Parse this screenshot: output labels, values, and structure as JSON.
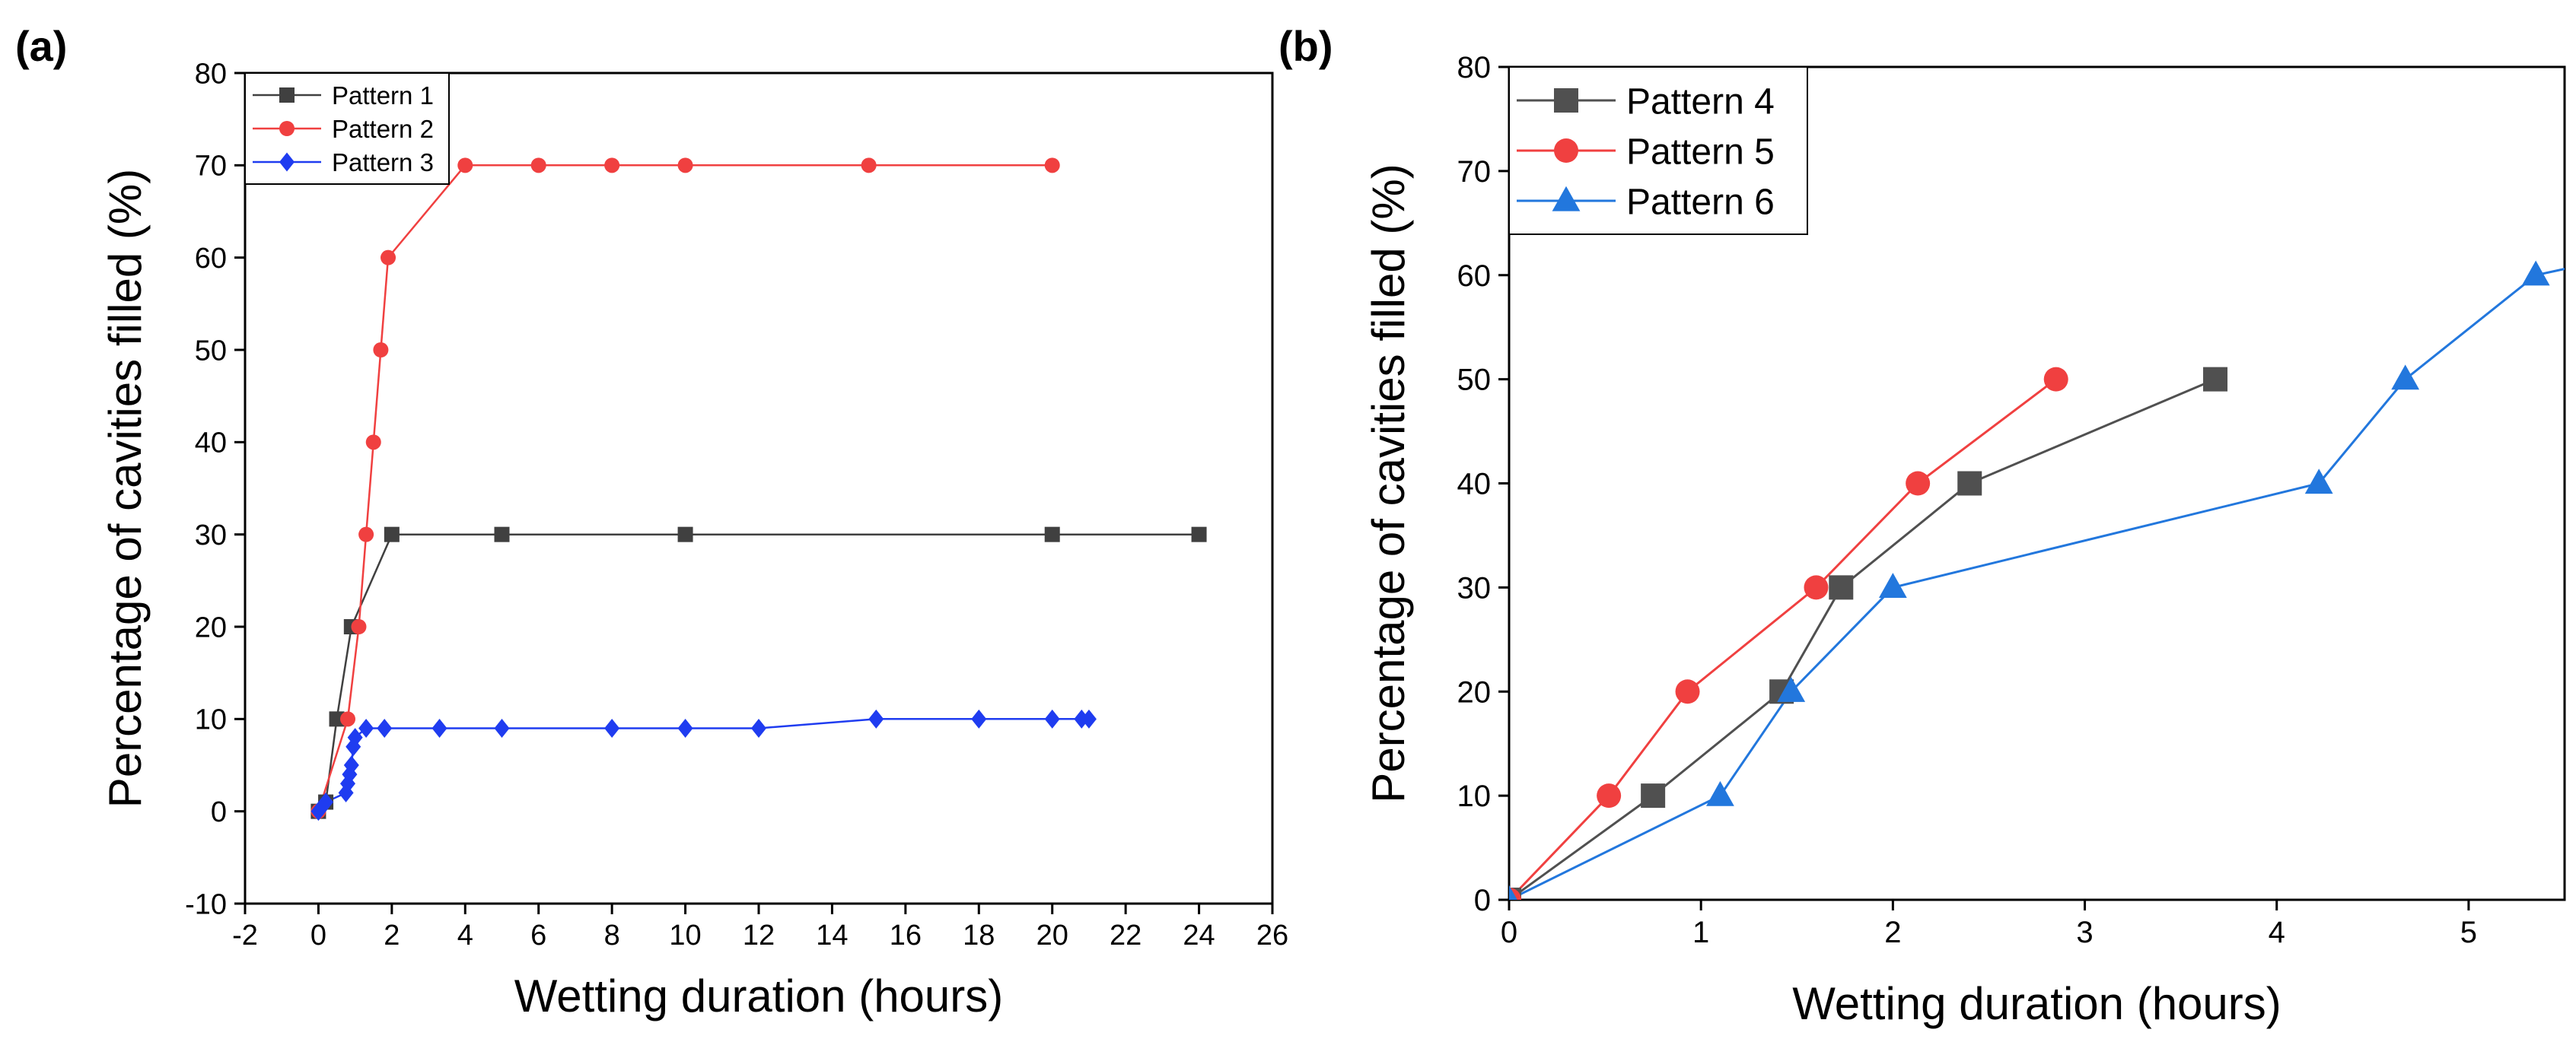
{
  "chart_data": [
    {
      "panel": "(a)",
      "type": "line",
      "xlabel": "Wetting duration (hours)",
      "ylabel": "Percentage of cavities filled (%)",
      "xlim": [
        -2,
        26
      ],
      "ylim": [
        -10,
        80
      ],
      "xticks": [
        -2,
        0,
        2,
        4,
        6,
        8,
        10,
        12,
        14,
        16,
        18,
        20,
        22,
        24,
        26
      ],
      "yticks": [
        -10,
        0,
        10,
        20,
        30,
        40,
        50,
        60,
        70,
        80
      ],
      "legend_position": "top-left",
      "series": [
        {
          "name": "Pattern 1",
          "color": "#404040",
          "marker": "square",
          "points": [
            [
              0,
              0
            ],
            [
              0.2,
              1
            ],
            [
              0.5,
              10
            ],
            [
              0.9,
              20
            ],
            [
              2,
              30
            ],
            [
              5,
              30
            ],
            [
              10,
              30
            ],
            [
              20,
              30
            ],
            [
              24,
              30
            ]
          ]
        },
        {
          "name": "Pattern 2",
          "color": "#f04040",
          "marker": "circle",
          "points": [
            [
              0,
              0
            ],
            [
              0.8,
              10
            ],
            [
              1.1,
              20
            ],
            [
              1.3,
              30
            ],
            [
              1.5,
              40
            ],
            [
              1.7,
              50
            ],
            [
              1.9,
              60
            ],
            [
              4,
              70
            ],
            [
              6,
              70
            ],
            [
              8,
              70
            ],
            [
              10,
              70
            ],
            [
              15,
              70
            ],
            [
              20,
              70
            ]
          ]
        },
        {
          "name": "Pattern 3",
          "color": "#1f3cf0",
          "marker": "diamond",
          "points": [
            [
              0,
              0
            ],
            [
              0.1,
              0.5
            ],
            [
              0.2,
              1
            ],
            [
              0.75,
              2
            ],
            [
              0.8,
              3
            ],
            [
              0.85,
              4
            ],
            [
              0.9,
              5
            ],
            [
              0.95,
              7
            ],
            [
              1,
              8
            ],
            [
              1.3,
              9
            ],
            [
              1.8,
              9
            ],
            [
              3.3,
              9
            ],
            [
              5,
              9
            ],
            [
              8,
              9
            ],
            [
              10,
              9
            ],
            [
              12,
              9
            ],
            [
              15.2,
              10
            ],
            [
              18,
              10
            ],
            [
              20,
              10
            ],
            [
              20.8,
              10
            ],
            [
              21,
              10
            ]
          ]
        }
      ]
    },
    {
      "panel": "(b)",
      "type": "line",
      "xlabel": "Wetting duration (hours)",
      "ylabel": "Percentage of cavities filled (%)",
      "xlim": [
        0,
        5.5
      ],
      "ylim": [
        0,
        80
      ],
      "xticks": [
        0,
        1,
        2,
        3,
        4,
        5
      ],
      "yticks": [
        0,
        10,
        20,
        30,
        40,
        50,
        60,
        70,
        80
      ],
      "legend_position": "top-left",
      "series": [
        {
          "name": "Pattern 4",
          "color": "#505050",
          "marker": "square",
          "points": [
            [
              0,
              0
            ],
            [
              0.75,
              10
            ],
            [
              1.42,
              20
            ],
            [
              1.73,
              30
            ],
            [
              2.4,
              40
            ],
            [
              3.68,
              50
            ]
          ]
        },
        {
          "name": "Pattern 5",
          "color": "#f04040",
          "marker": "circle",
          "points": [
            [
              0,
              0
            ],
            [
              0.52,
              10
            ],
            [
              0.93,
              20
            ],
            [
              1.6,
              30
            ],
            [
              2.13,
              40
            ],
            [
              2.85,
              50
            ]
          ]
        },
        {
          "name": "Pattern 6",
          "color": "#2277dd",
          "marker": "triangle",
          "points": [
            [
              0,
              0
            ],
            [
              1.1,
              10
            ],
            [
              1.47,
              20
            ],
            [
              2,
              30
            ],
            [
              4.22,
              40
            ],
            [
              4.67,
              50
            ],
            [
              5.35,
              60
            ],
            [
              5.6,
              61
            ]
          ]
        }
      ]
    }
  ]
}
